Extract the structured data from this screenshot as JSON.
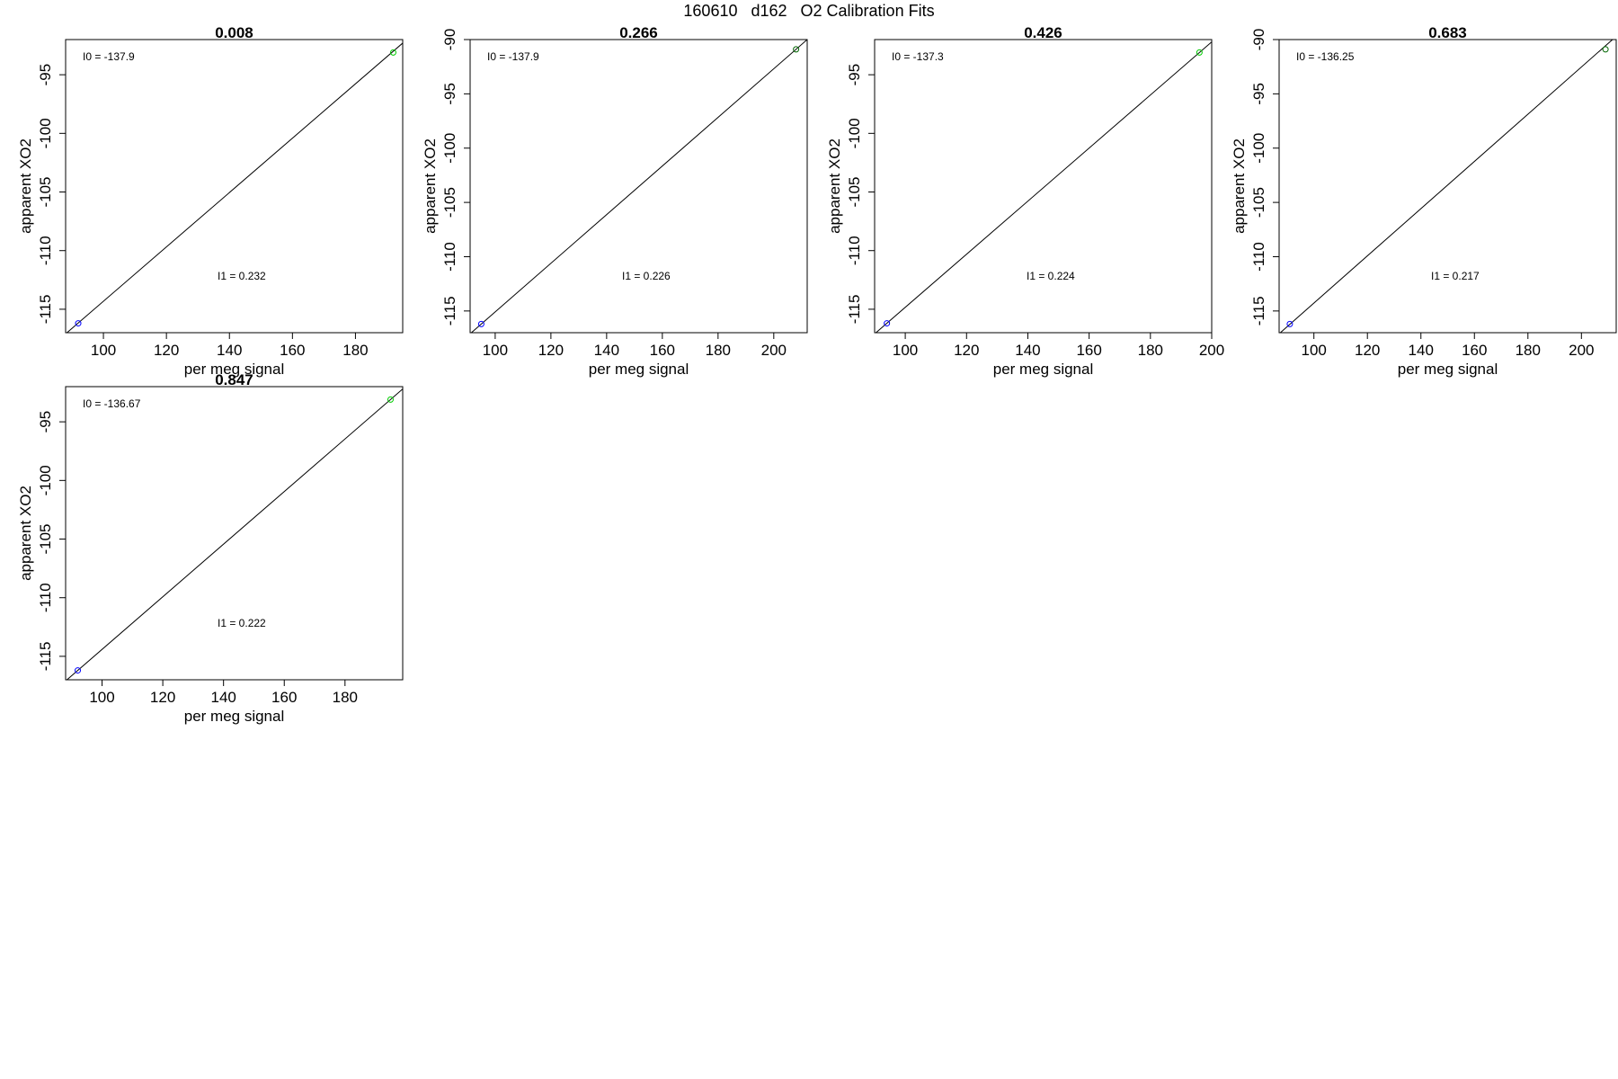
{
  "page_title": "160610   d162   O2 Calibration Fits",
  "chart_data": [
    {
      "type": "scatter",
      "title": "0.008",
      "xlabel": "per meg signal",
      "ylabel": "apparent XO2",
      "xlim": [
        88,
        195
      ],
      "ylim": [
        -117,
        -92
      ],
      "xticks": [
        100,
        120,
        140,
        160,
        180
      ],
      "yticks": [
        -115,
        -110,
        -105,
        -100,
        -95
      ],
      "points": [
        {
          "x": 92,
          "y": -116.2,
          "color": "#0000ff"
        },
        {
          "x": 192,
          "y": -93.1,
          "color": "#00cc00"
        }
      ],
      "fit_line": {
        "x": [
          88,
          195
        ],
        "y": [
          -117.1,
          -92.3
        ]
      },
      "annotations": {
        "i0_label": "I0 =",
        "i0": "-137.9",
        "i1_label": "I1 =",
        "i1": "0.232"
      }
    },
    {
      "type": "scatter",
      "title": "0.266",
      "xlabel": "per meg signal",
      "ylabel": "apparent XO2",
      "xlim": [
        91,
        212
      ],
      "ylim": [
        -117,
        -90
      ],
      "xticks": [
        100,
        120,
        140,
        160,
        180,
        200
      ],
      "yticks": [
        -115,
        -110,
        -105,
        -100,
        -95,
        -90
      ],
      "points": [
        {
          "x": 95,
          "y": -116.2,
          "color": "#0000ff"
        },
        {
          "x": 208,
          "y": -90.9,
          "color": "#006600"
        }
      ],
      "fit_line": {
        "x": [
          91,
          212
        ],
        "y": [
          -117.1,
          -90.0
        ]
      },
      "annotations": {
        "i0_label": "I0 =",
        "i0": "-137.9",
        "i1_label": "I1 =",
        "i1": "0.226"
      }
    },
    {
      "type": "scatter",
      "title": "0.426",
      "xlabel": "per meg signal",
      "ylabel": "apparent XO2",
      "xlim": [
        90,
        200
      ],
      "ylim": [
        -117,
        -92
      ],
      "xticks": [
        100,
        120,
        140,
        160,
        180,
        200
      ],
      "yticks": [
        -115,
        -110,
        -105,
        -100,
        -95
      ],
      "points": [
        {
          "x": 94,
          "y": -116.2,
          "color": "#0000ff"
        },
        {
          "x": 196,
          "y": -93.1,
          "color": "#00cc00"
        }
      ],
      "fit_line": {
        "x": [
          90,
          200
        ],
        "y": [
          -117.1,
          -92.2
        ]
      },
      "annotations": {
        "i0_label": "I0 =",
        "i0": "-137.3",
        "i1_label": "I1 =",
        "i1": "0.224"
      }
    },
    {
      "type": "scatter",
      "title": "0.683",
      "xlabel": "per meg signal",
      "ylabel": "apparent XO2",
      "xlim": [
        87,
        213
      ],
      "ylim": [
        -117,
        -90
      ],
      "xticks": [
        100,
        120,
        140,
        160,
        180,
        200
      ],
      "yticks": [
        -115,
        -110,
        -105,
        -100,
        -95,
        -90
      ],
      "points": [
        {
          "x": 91,
          "y": -116.2,
          "color": "#0000ff"
        },
        {
          "x": 209,
          "y": -90.9,
          "color": "#006600"
        }
      ],
      "fit_line": {
        "x": [
          87,
          213
        ],
        "y": [
          -117.1,
          -89.7
        ]
      },
      "annotations": {
        "i0_label": "I0 =",
        "i0": "-136.25",
        "i1_label": "I1 =",
        "i1": "0.217"
      }
    },
    {
      "type": "scatter",
      "title": "0.847",
      "xlabel": "per meg signal",
      "ylabel": "apparent XO2",
      "xlim": [
        88,
        199
      ],
      "ylim": [
        -117,
        -92
      ],
      "xticks": [
        100,
        120,
        140,
        160,
        180
      ],
      "yticks": [
        -115,
        -110,
        -105,
        -100,
        -95
      ],
      "points": [
        {
          "x": 92,
          "y": -116.2,
          "color": "#0000ff"
        },
        {
          "x": 195,
          "y": -93.1,
          "color": "#00cc00"
        }
      ],
      "fit_line": {
        "x": [
          88,
          199
        ],
        "y": [
          -117.1,
          -92.2
        ]
      },
      "annotations": {
        "i0_label": "I0 =",
        "i0": "-136.67",
        "i1_label": "I1 =",
        "i1": "0.222"
      }
    }
  ]
}
